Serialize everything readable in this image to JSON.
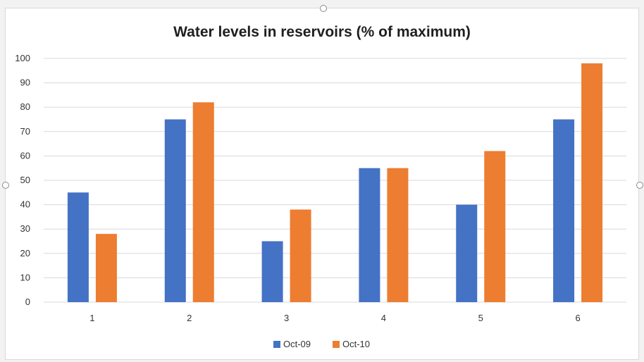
{
  "chart_data": {
    "type": "bar",
    "title": "Water levels in reservoirs (% of maximum)",
    "categories": [
      "1",
      "2",
      "3",
      "4",
      "5",
      "6"
    ],
    "series": [
      {
        "name": "Oct-09",
        "color": "#4472c4",
        "values": [
          45,
          75,
          25,
          55,
          40,
          75
        ]
      },
      {
        "name": "Oct-10",
        "color": "#ed7d31",
        "values": [
          28,
          82,
          38,
          55,
          62,
          98
        ]
      }
    ],
    "ylim": [
      0,
      100
    ],
    "yticks": [
      0,
      10,
      20,
      30,
      40,
      50,
      60,
      70,
      80,
      90,
      100
    ],
    "grid": true,
    "legend_position": "bottom-center",
    "gridline_color": "#d9d9d9"
  }
}
